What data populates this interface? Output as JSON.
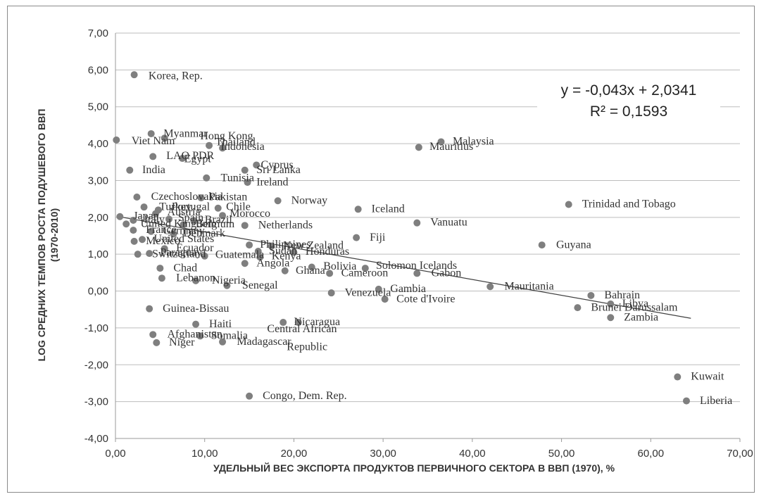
{
  "chart_data": {
    "type": "scatter",
    "xlabel": "УДЕЛЬНЫЙ ВЕС ЭКСПОРТА ПРОДУКТОВ ПЕРВИЧНОГО СЕКТОРА В ВВП (1970), %",
    "ylabel_lines": [
      "LOG СРЕДНИХ ТЕМПОВ РОСТА ПОДУШЕВОГО ВВП",
      "(1970-2010)"
    ],
    "xlim": [
      0,
      70
    ],
    "ylim": [
      -4,
      7
    ],
    "x_ticks": [
      "0,00",
      "10,00",
      "20,00",
      "30,00",
      "40,00",
      "50,00",
      "60,00",
      "70,00"
    ],
    "y_ticks": [
      "7,00",
      "6,00",
      "5,00",
      "4,00",
      "3,00",
      "2,00",
      "1,00",
      "0,00",
      "-1,00",
      "-2,00",
      "-3,00",
      "-4,00"
    ],
    "grid": "horizontal",
    "marker_color": "#7f7f7f",
    "trendline": {
      "slope": -0.043,
      "intercept": 2.0341,
      "equation": "y = -0,043x + 2,0341",
      "r2": "R² = 0,1593",
      "x_range": [
        0.3,
        64.5
      ]
    },
    "points": [
      {
        "x": 2.1,
        "y": 5.87,
        "label": "Korea, Rep."
      },
      {
        "x": 0.1,
        "y": 4.1,
        "label": "Vietnam"
      },
      {
        "x": 4.0,
        "y": 4.27,
        "label": "Myanmar"
      },
      {
        "x": 5.5,
        "y": 4.15,
        "label": "Hong Kong"
      },
      {
        "x": 10.5,
        "y": 3.95,
        "label": "Thailand"
      },
      {
        "x": 12.0,
        "y": 3.88,
        "label": "Indonesia"
      },
      {
        "x": 34.0,
        "y": 3.9,
        "label": "Mauritius"
      },
      {
        "x": 36.5,
        "y": 4.05,
        "label": "Malaysia"
      },
      {
        "x": 4.2,
        "y": 3.65,
        "label": "LAO PDR"
      },
      {
        "x": 7.5,
        "y": 3.6,
        "label": "Egypt"
      },
      {
        "x": 15.8,
        "y": 3.42,
        "label": "Cyprus"
      },
      {
        "x": 14.5,
        "y": 3.28,
        "label": "Sri Lanka"
      },
      {
        "x": 1.6,
        "y": 3.28,
        "label": "India"
      },
      {
        "x": 10.2,
        "y": 3.07,
        "label": "Tunisia"
      },
      {
        "x": 14.8,
        "y": 2.95,
        "label": "Ireland"
      },
      {
        "x": 2.4,
        "y": 2.55,
        "label": "Czechoslovakia"
      },
      {
        "x": 9.6,
        "y": 2.53,
        "label": "Pakistan"
      },
      {
        "x": 18.2,
        "y": 2.45,
        "label": "Norway"
      },
      {
        "x": 3.2,
        "y": 2.28,
        "label": "Turkey"
      },
      {
        "x": 11.5,
        "y": 2.25,
        "label": "Chile"
      },
      {
        "x": 27.2,
        "y": 2.22,
        "label": "Iceland"
      },
      {
        "x": 4.8,
        "y": 2.2,
        "label": "Portugal"
      },
      {
        "x": 4.5,
        "y": 2.1,
        "label": "Austria"
      },
      {
        "x": 12.0,
        "y": 2.05,
        "label": "Morocco"
      },
      {
        "x": 0.5,
        "y": 2.02,
        "label": "Japan"
      },
      {
        "x": 2.0,
        "y": 1.92,
        "label": "Italy"
      },
      {
        "x": 6.0,
        "y": 1.95,
        "label": "Spain"
      },
      {
        "x": 8.8,
        "y": 1.9,
        "label": "Brazil"
      },
      {
        "x": 33.8,
        "y": 1.85,
        "label": "Vanuatu"
      },
      {
        "x": 1.2,
        "y": 1.82,
        "label": "United Kingdom"
      },
      {
        "x": 7.6,
        "y": 1.8,
        "label": "Belgium"
      },
      {
        "x": 14.5,
        "y": 1.78,
        "label": "Netherlands"
      },
      {
        "x": 2.0,
        "y": 1.65,
        "label": "France"
      },
      {
        "x": 4.0,
        "y": 1.62,
        "label": "Germany"
      },
      {
        "x": 6.5,
        "y": 1.55,
        "label": "Denmark"
      },
      {
        "x": 27.0,
        "y": 1.45,
        "label": "Fiji"
      },
      {
        "x": 3.0,
        "y": 1.4,
        "label": "United States"
      },
      {
        "x": 2.1,
        "y": 1.35,
        "label": "Mexico"
      },
      {
        "x": 15.0,
        "y": 1.25,
        "label": "Philippines"
      },
      {
        "x": 17.5,
        "y": 1.22,
        "label": "New Zealand"
      },
      {
        "x": 47.8,
        "y": 1.25,
        "label": "Guyana"
      },
      {
        "x": 5.5,
        "y": 1.15,
        "label": "Ecuador"
      },
      {
        "x": 16.0,
        "y": 1.08,
        "label": "Sudan"
      },
      {
        "x": 20.0,
        "y": 1.05,
        "label": "Honduras"
      },
      {
        "x": 3.8,
        "y": 1.02,
        "label": "Paraguay"
      },
      {
        "x": 2.5,
        "y": 1.0,
        "label": "Switzerland"
      },
      {
        "x": 10.0,
        "y": 0.95,
        "label": "Guatemala"
      },
      {
        "x": 16.2,
        "y": 0.92,
        "label": "Kenya"
      },
      {
        "x": 14.5,
        "y": 0.75,
        "label": "Angola"
      },
      {
        "x": 22.0,
        "y": 0.65,
        "label": "Bolivia"
      },
      {
        "x": 28.0,
        "y": 0.62,
        "label": "Solomon Islands"
      },
      {
        "x": 19.0,
        "y": 0.55,
        "label": "Ghana"
      },
      {
        "x": 24.0,
        "y": 0.48,
        "label": "Cameroon"
      },
      {
        "x": 33.8,
        "y": 0.48,
        "label": "Gabon"
      },
      {
        "x": 5.0,
        "y": 0.62,
        "label": "Chad"
      },
      {
        "x": 5.2,
        "y": 0.35,
        "label": "Lebanon"
      },
      {
        "x": 9.0,
        "y": 0.28,
        "label": "Nigeria"
      },
      {
        "x": 12.5,
        "y": 0.15,
        "label": "Senegal"
      },
      {
        "x": 42.0,
        "y": 0.12,
        "label": "Mauritania"
      },
      {
        "x": 50.8,
        "y": 2.35,
        "label": "Trinidad and Tobago"
      },
      {
        "x": 24.2,
        "y": -0.05,
        "label": "Venezuela"
      },
      {
        "x": 29.5,
        "y": 0.05,
        "label": "Gambia"
      },
      {
        "x": 30.2,
        "y": -0.22,
        "label": "Cote d'Ivoire"
      },
      {
        "x": 53.3,
        "y": -0.12,
        "label": "Bahrain"
      },
      {
        "x": 55.5,
        "y": -0.35,
        "label": "Libya"
      },
      {
        "x": 51.8,
        "y": -0.45,
        "label": "Brunei Darussalam"
      },
      {
        "x": 55.5,
        "y": -0.72,
        "label": "Zambia"
      },
      {
        "x": 3.8,
        "y": -0.48,
        "label": "Guinea-Bissau"
      },
      {
        "x": 9.0,
        "y": -0.9,
        "label": "Haiti"
      },
      {
        "x": 18.8,
        "y": -0.85,
        "label": "Central African Republic"
      },
      {
        "x": 20.5,
        "y": -0.85,
        "label": "Nicaragua"
      },
      {
        "x": 4.2,
        "y": -1.18,
        "label": "Afghanistan"
      },
      {
        "x": 9.5,
        "y": -1.22,
        "label": "Somalia"
      },
      {
        "x": 4.6,
        "y": -1.4,
        "label": "Niger"
      },
      {
        "x": 12.0,
        "y": -1.38,
        "label": "Madagascar"
      },
      {
        "x": 63.0,
        "y": -2.33,
        "label": "Kuwait"
      },
      {
        "x": 15.0,
        "y": -2.85,
        "label": "Congo, Dem. Rep."
      },
      {
        "x": 64.0,
        "y": -2.98,
        "label": "Liberia"
      }
    ],
    "visible_labels": [
      {
        "text": "Korea, Rep.",
        "lx": 3.7,
        "ly": 5.75
      },
      {
        "text": "Viet Nam",
        "lx": 1.8,
        "ly": 3.98
      },
      {
        "text": "Myanmar",
        "lx": 5.4,
        "ly": 4.18
      },
      {
        "text": "Hong Kong",
        "lx": 9.5,
        "ly": 4.12
      },
      {
        "text": "Thailand",
        "lx": 11.2,
        "ly": 3.95
      },
      {
        "text": "Indonesia",
        "lx": 11.8,
        "ly": 3.83
      },
      {
        "text": "Mauritius",
        "lx": 35.2,
        "ly": 3.83
      },
      {
        "text": "Malaysia",
        "lx": 37.8,
        "ly": 3.97
      },
      {
        "text": "LAO PDR",
        "lx": 5.7,
        "ly": 3.58
      },
      {
        "text": "Egypt",
        "lx": 7.7,
        "ly": 3.5
      },
      {
        "text": "Cyprus",
        "lx": 16.3,
        "ly": 3.33
      },
      {
        "text": "Sri Lanka",
        "lx": 15.8,
        "ly": 3.2
      },
      {
        "text": "India",
        "lx": 3.0,
        "ly": 3.2
      },
      {
        "text": "Tunisia",
        "lx": 11.8,
        "ly": 2.98
      },
      {
        "text": "Ireland",
        "lx": 15.8,
        "ly": 2.87
      },
      {
        "text": "Czechoslovakia",
        "lx": 4.0,
        "ly": 2.47
      },
      {
        "text": "Pakistan",
        "lx": 10.5,
        "ly": 2.46
      },
      {
        "text": "Norway",
        "lx": 19.7,
        "ly": 2.37
      },
      {
        "text": "Turkey",
        "lx": 4.9,
        "ly": 2.2
      },
      {
        "text": "Portugal",
        "lx": 6.3,
        "ly": 2.2
      },
      {
        "text": "Chile",
        "lx": 12.4,
        "ly": 2.2
      },
      {
        "text": "Iceland",
        "lx": 28.7,
        "ly": 2.14
      },
      {
        "text": "Austria",
        "lx": 5.8,
        "ly": 2.05
      },
      {
        "text": "Morocco",
        "lx": 12.8,
        "ly": 2.02
      },
      {
        "text": "Japan",
        "lx": 2.0,
        "ly": 1.95
      },
      {
        "text": "Italy",
        "lx": 3.2,
        "ly": 1.85
      },
      {
        "text": "Spain",
        "lx": 7.0,
        "ly": 1.9
      },
      {
        "text": "Brazil",
        "lx": 10.0,
        "ly": 1.84
      },
      {
        "text": "Vanuatu",
        "lx": 35.3,
        "ly": 1.78
      },
      {
        "text": "United Kingdom",
        "lx": 2.8,
        "ly": 1.74
      },
      {
        "text": "Belgium",
        "lx": 9.0,
        "ly": 1.73
      },
      {
        "text": "Netherlands",
        "lx": 16.0,
        "ly": 1.7
      },
      {
        "text": "France",
        "lx": 3.4,
        "ly": 1.58
      },
      {
        "text": "Germany",
        "lx": 5.3,
        "ly": 1.55
      },
      {
        "text": "Denmark",
        "lx": 7.6,
        "ly": 1.48
      },
      {
        "text": "Fiji",
        "lx": 28.5,
        "ly": 1.37
      },
      {
        "text": "United States",
        "lx": 4.3,
        "ly": 1.33
      },
      {
        "text": "Mexico",
        "lx": 3.4,
        "ly": 1.27
      },
      {
        "text": "Philippines",
        "lx": 16.2,
        "ly": 1.18
      },
      {
        "text": "New Zealand",
        "lx": 18.8,
        "ly": 1.15
      },
      {
        "text": "Guyana",
        "lx": 49.4,
        "ly": 1.17
      },
      {
        "text": "Ecuador",
        "lx": 6.8,
        "ly": 1.08
      },
      {
        "text": "Sudan",
        "lx": 17.2,
        "ly": 1.0
      },
      {
        "text": "Honduras",
        "lx": 21.3,
        "ly": 0.98
      },
      {
        "text": "Paraguay",
        "lx": 5.0,
        "ly": 0.96
      },
      {
        "text": "Switzerland",
        "lx": 4.1,
        "ly": 0.92
      },
      {
        "text": "Guatemala",
        "lx": 11.2,
        "ly": 0.9
      },
      {
        "text": "Kenya",
        "lx": 17.5,
        "ly": 0.86
      },
      {
        "text": "Angola",
        "lx": 15.8,
        "ly": 0.67
      },
      {
        "text": "Bolivia",
        "lx": 23.3,
        "ly": 0.58
      },
      {
        "text": "Solomon Icelands",
        "lx": 29.2,
        "ly": 0.6
      },
      {
        "text": "Ghana",
        "lx": 20.2,
        "ly": 0.47
      },
      {
        "text": "Cameroon",
        "lx": 25.3,
        "ly": 0.4
      },
      {
        "text": "Gabon",
        "lx": 35.4,
        "ly": 0.4
      },
      {
        "text": "Chad",
        "lx": 6.5,
        "ly": 0.54
      },
      {
        "text": "Lebanon",
        "lx": 6.8,
        "ly": 0.27
      },
      {
        "text": "Nigeria",
        "lx": 10.8,
        "ly": 0.2
      },
      {
        "text": "Senegal",
        "lx": 14.2,
        "ly": 0.07
      },
      {
        "text": "Mauritania",
        "lx": 43.6,
        "ly": 0.04
      },
      {
        "text": "Trinidad and Tobago",
        "lx": 52.3,
        "ly": 2.27
      },
      {
        "text": "Venezuela",
        "lx": 25.7,
        "ly": -0.13
      },
      {
        "text": "Gambia",
        "lx": 30.8,
        "ly": -0.03
      },
      {
        "text": "Cote d'Ivoire",
        "lx": 31.5,
        "ly": -0.3
      },
      {
        "text": "Bahrain",
        "lx": 54.8,
        "ly": -0.2
      },
      {
        "text": "Libya",
        "lx": 56.8,
        "ly": -0.43
      },
      {
        "text": "Brunei Darussalam",
        "lx": 53.3,
        "ly": -0.53
      },
      {
        "text": "Zambia",
        "lx": 57.0,
        "ly": -0.8
      },
      {
        "text": "Guinea-Bissau",
        "lx": 5.3,
        "ly": -0.56
      },
      {
        "text": "Haiti",
        "lx": 10.5,
        "ly": -0.98
      },
      {
        "text": "Central African",
        "lx": 17.0,
        "ly": -1.12
      },
      {
        "text": "Republic",
        "lx": 19.2,
        "ly": -1.6
      },
      {
        "text": "Nicaragua",
        "lx": 20.0,
        "ly": -0.93
      },
      {
        "text": "Afghanistan",
        "lx": 5.8,
        "ly": -1.26
      },
      {
        "text": "Somalia",
        "lx": 10.7,
        "ly": -1.3
      },
      {
        "text": "Niger",
        "lx": 6.0,
        "ly": -1.48
      },
      {
        "text": "Madagascar",
        "lx": 13.6,
        "ly": -1.46
      },
      {
        "text": "Kuwait",
        "lx": 64.5,
        "ly": -2.41
      },
      {
        "text": "Congo, Dem. Rep.",
        "lx": 16.5,
        "ly": -2.93
      },
      {
        "text": "Liberia",
        "lx": 65.5,
        "ly": -3.06
      }
    ]
  }
}
